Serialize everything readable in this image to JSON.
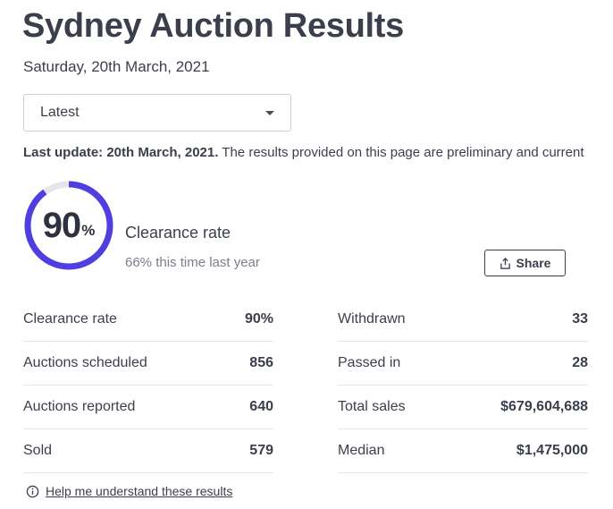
{
  "header": {
    "title": "Sydney Auction Results",
    "date": "Saturday, 20th March, 2021"
  },
  "filter": {
    "selected": "Latest",
    "icon": "chevron-down-icon"
  },
  "update_notice": {
    "bold": "Last update: 20th March, 2021.",
    "text": " The results provided on this page are preliminary and current"
  },
  "clearance": {
    "value": "90",
    "percent_sign": "%",
    "rate_fraction": 0.9,
    "label": "Clearance rate",
    "sub": "66% this time last year",
    "accent_color": "#4f3fe0",
    "track_color": "#e6e6ea"
  },
  "share": {
    "label": "Share",
    "icon": "share-icon"
  },
  "stats_left": [
    {
      "label": "Clearance rate",
      "value": "90%"
    },
    {
      "label": "Auctions scheduled",
      "value": "856"
    },
    {
      "label": "Auctions reported",
      "value": "640"
    },
    {
      "label": "Sold",
      "value": "579"
    }
  ],
  "stats_right": [
    {
      "label": "Withdrawn",
      "value": "33"
    },
    {
      "label": "Passed in",
      "value": "28"
    },
    {
      "label": "Total sales",
      "value": "$679,604,688"
    },
    {
      "label": "Median",
      "value": "$1,475,000"
    }
  ],
  "help": {
    "label": "Help me understand these results",
    "icon": "info-icon"
  }
}
